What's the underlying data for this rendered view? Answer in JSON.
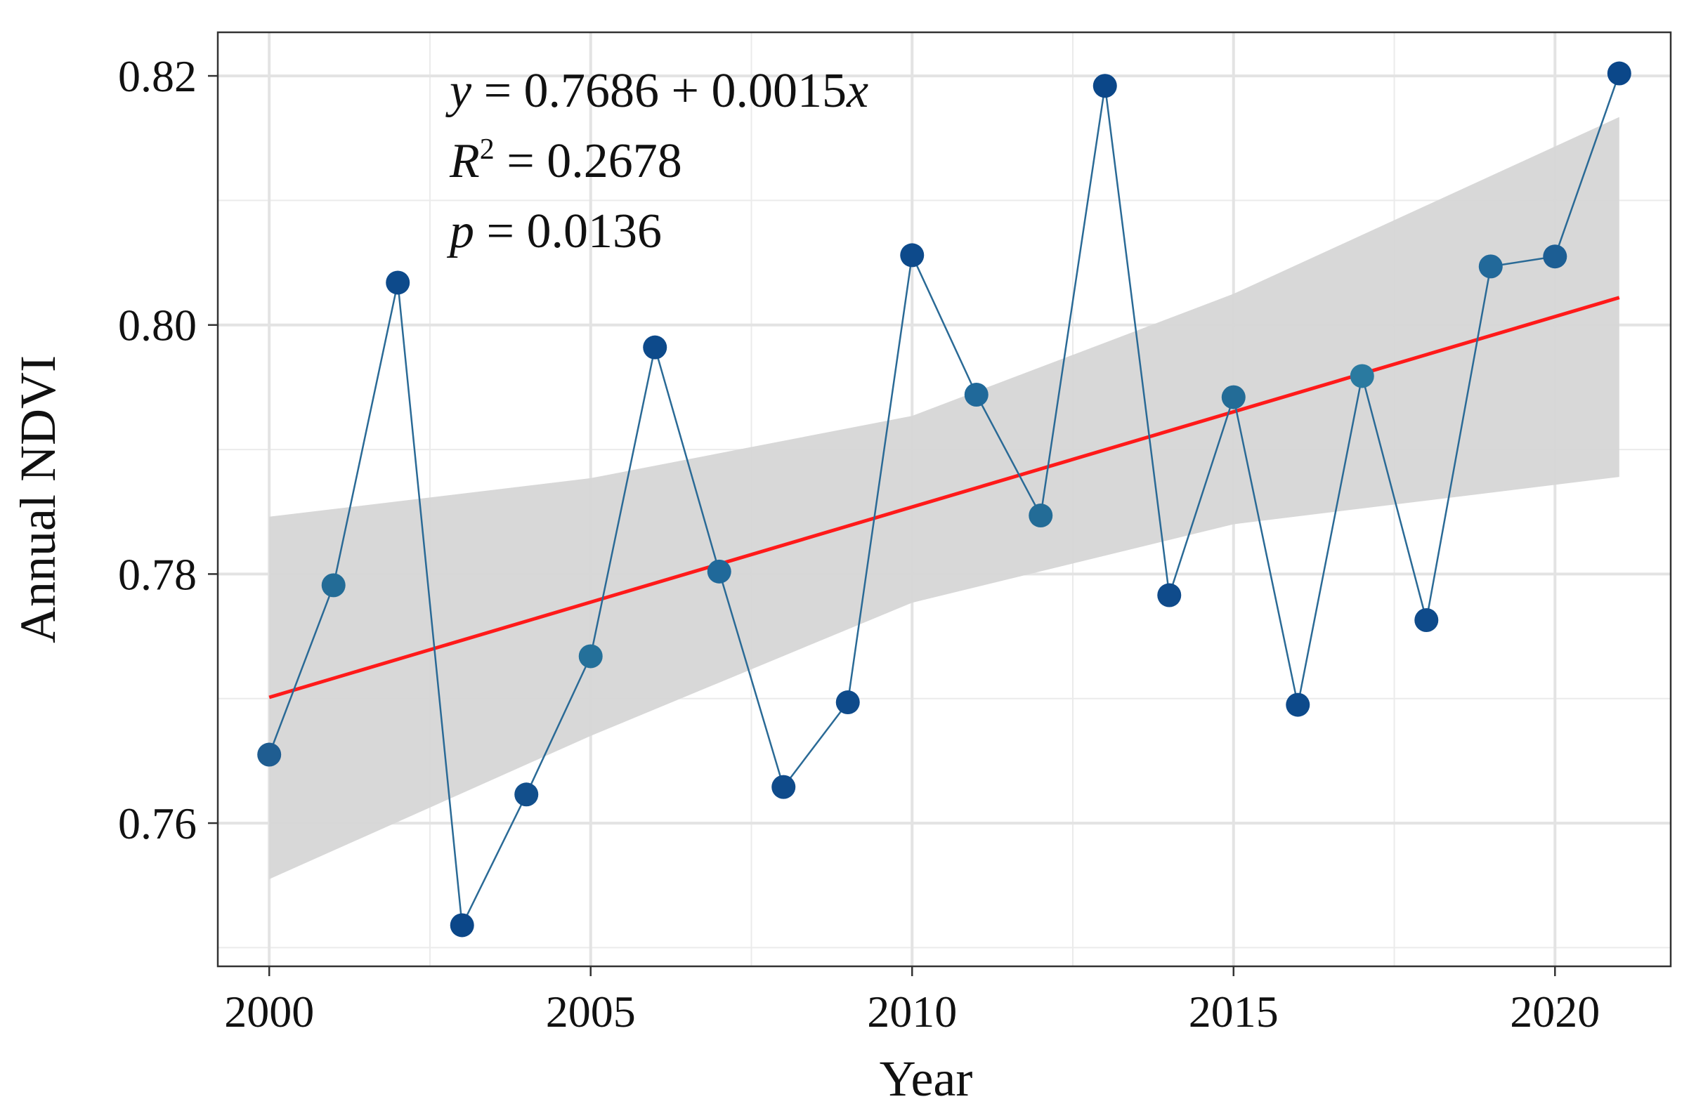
{
  "chart_data": {
    "type": "line",
    "xlabel": "Year",
    "ylabel": "Annual NDVI",
    "xlim": [
      1999.2,
      2021.8
    ],
    "ylim": [
      0.7485,
      0.8235
    ],
    "x_ticks": [
      2000,
      2005,
      2010,
      2015,
      2020
    ],
    "x_tick_labels": [
      "2000",
      "2005",
      "2010",
      "2015",
      "2020"
    ],
    "y_ticks": [
      0.76,
      0.78,
      0.8,
      0.82
    ],
    "y_tick_labels": [
      "0.76",
      "0.78",
      "0.80",
      "0.82"
    ],
    "grid": true,
    "series": [
      {
        "name": "Annual NDVI",
        "color": "#2a6a96",
        "x": [
          2000,
          2001,
          2002,
          2003,
          2004,
          2005,
          2006,
          2007,
          2008,
          2009,
          2010,
          2011,
          2012,
          2013,
          2014,
          2015,
          2016,
          2017,
          2018,
          2019,
          2020,
          2021
        ],
        "values": [
          0.7655,
          0.7791,
          0.8034,
          0.7518,
          0.7623,
          0.7734,
          0.7982,
          0.7802,
          0.7629,
          0.7697,
          0.8056,
          0.7944,
          0.7847,
          0.8192,
          0.7783,
          0.7942,
          0.7695,
          0.7959,
          0.7763,
          0.8047,
          0.8055,
          0.8202
        ],
        "point_colors": [
          "#1f5d91",
          "#236c97",
          "#0d4a8b",
          "#0b4789",
          "#124f8c",
          "#24709a",
          "#0d4a8b",
          "#20699a",
          "#0f4b8b",
          "#0f4b8b",
          "#0d4a8b",
          "#20699a",
          "#236c97",
          "#0b4789",
          "#0f4b8b",
          "#236c97",
          "#0d4a8b",
          "#2a7aa0",
          "#0f4b8b",
          "#22699a",
          "#1c5e94",
          "#0b4789"
        ]
      }
    ],
    "trend": {
      "intercept": 0.7686,
      "slope": 0.0015,
      "x_start": 2000,
      "x_end": 2021,
      "y_start": 0.7701,
      "y_end": 0.8022,
      "color": "#ff1a1a"
    },
    "confidence_band": {
      "x": [
        2000,
        2005,
        2010,
        2015,
        2021
      ],
      "lower": [
        0.7555,
        0.767,
        0.7777,
        0.784,
        0.7878
      ],
      "upper": [
        0.7846,
        0.7877,
        0.7927,
        0.8025,
        0.8167
      ],
      "color": "#d6d6d6"
    },
    "annotation": {
      "equation": {
        "y_var": "y",
        "equals_text": " = 0.7686 + 0.0015",
        "x_var": "x"
      },
      "r2": {
        "r_var": "R",
        "sup": "2",
        "equals_text": " = 0.2678"
      },
      "p": {
        "p_var": "p",
        "equals_text": " = 0.0136"
      }
    }
  }
}
